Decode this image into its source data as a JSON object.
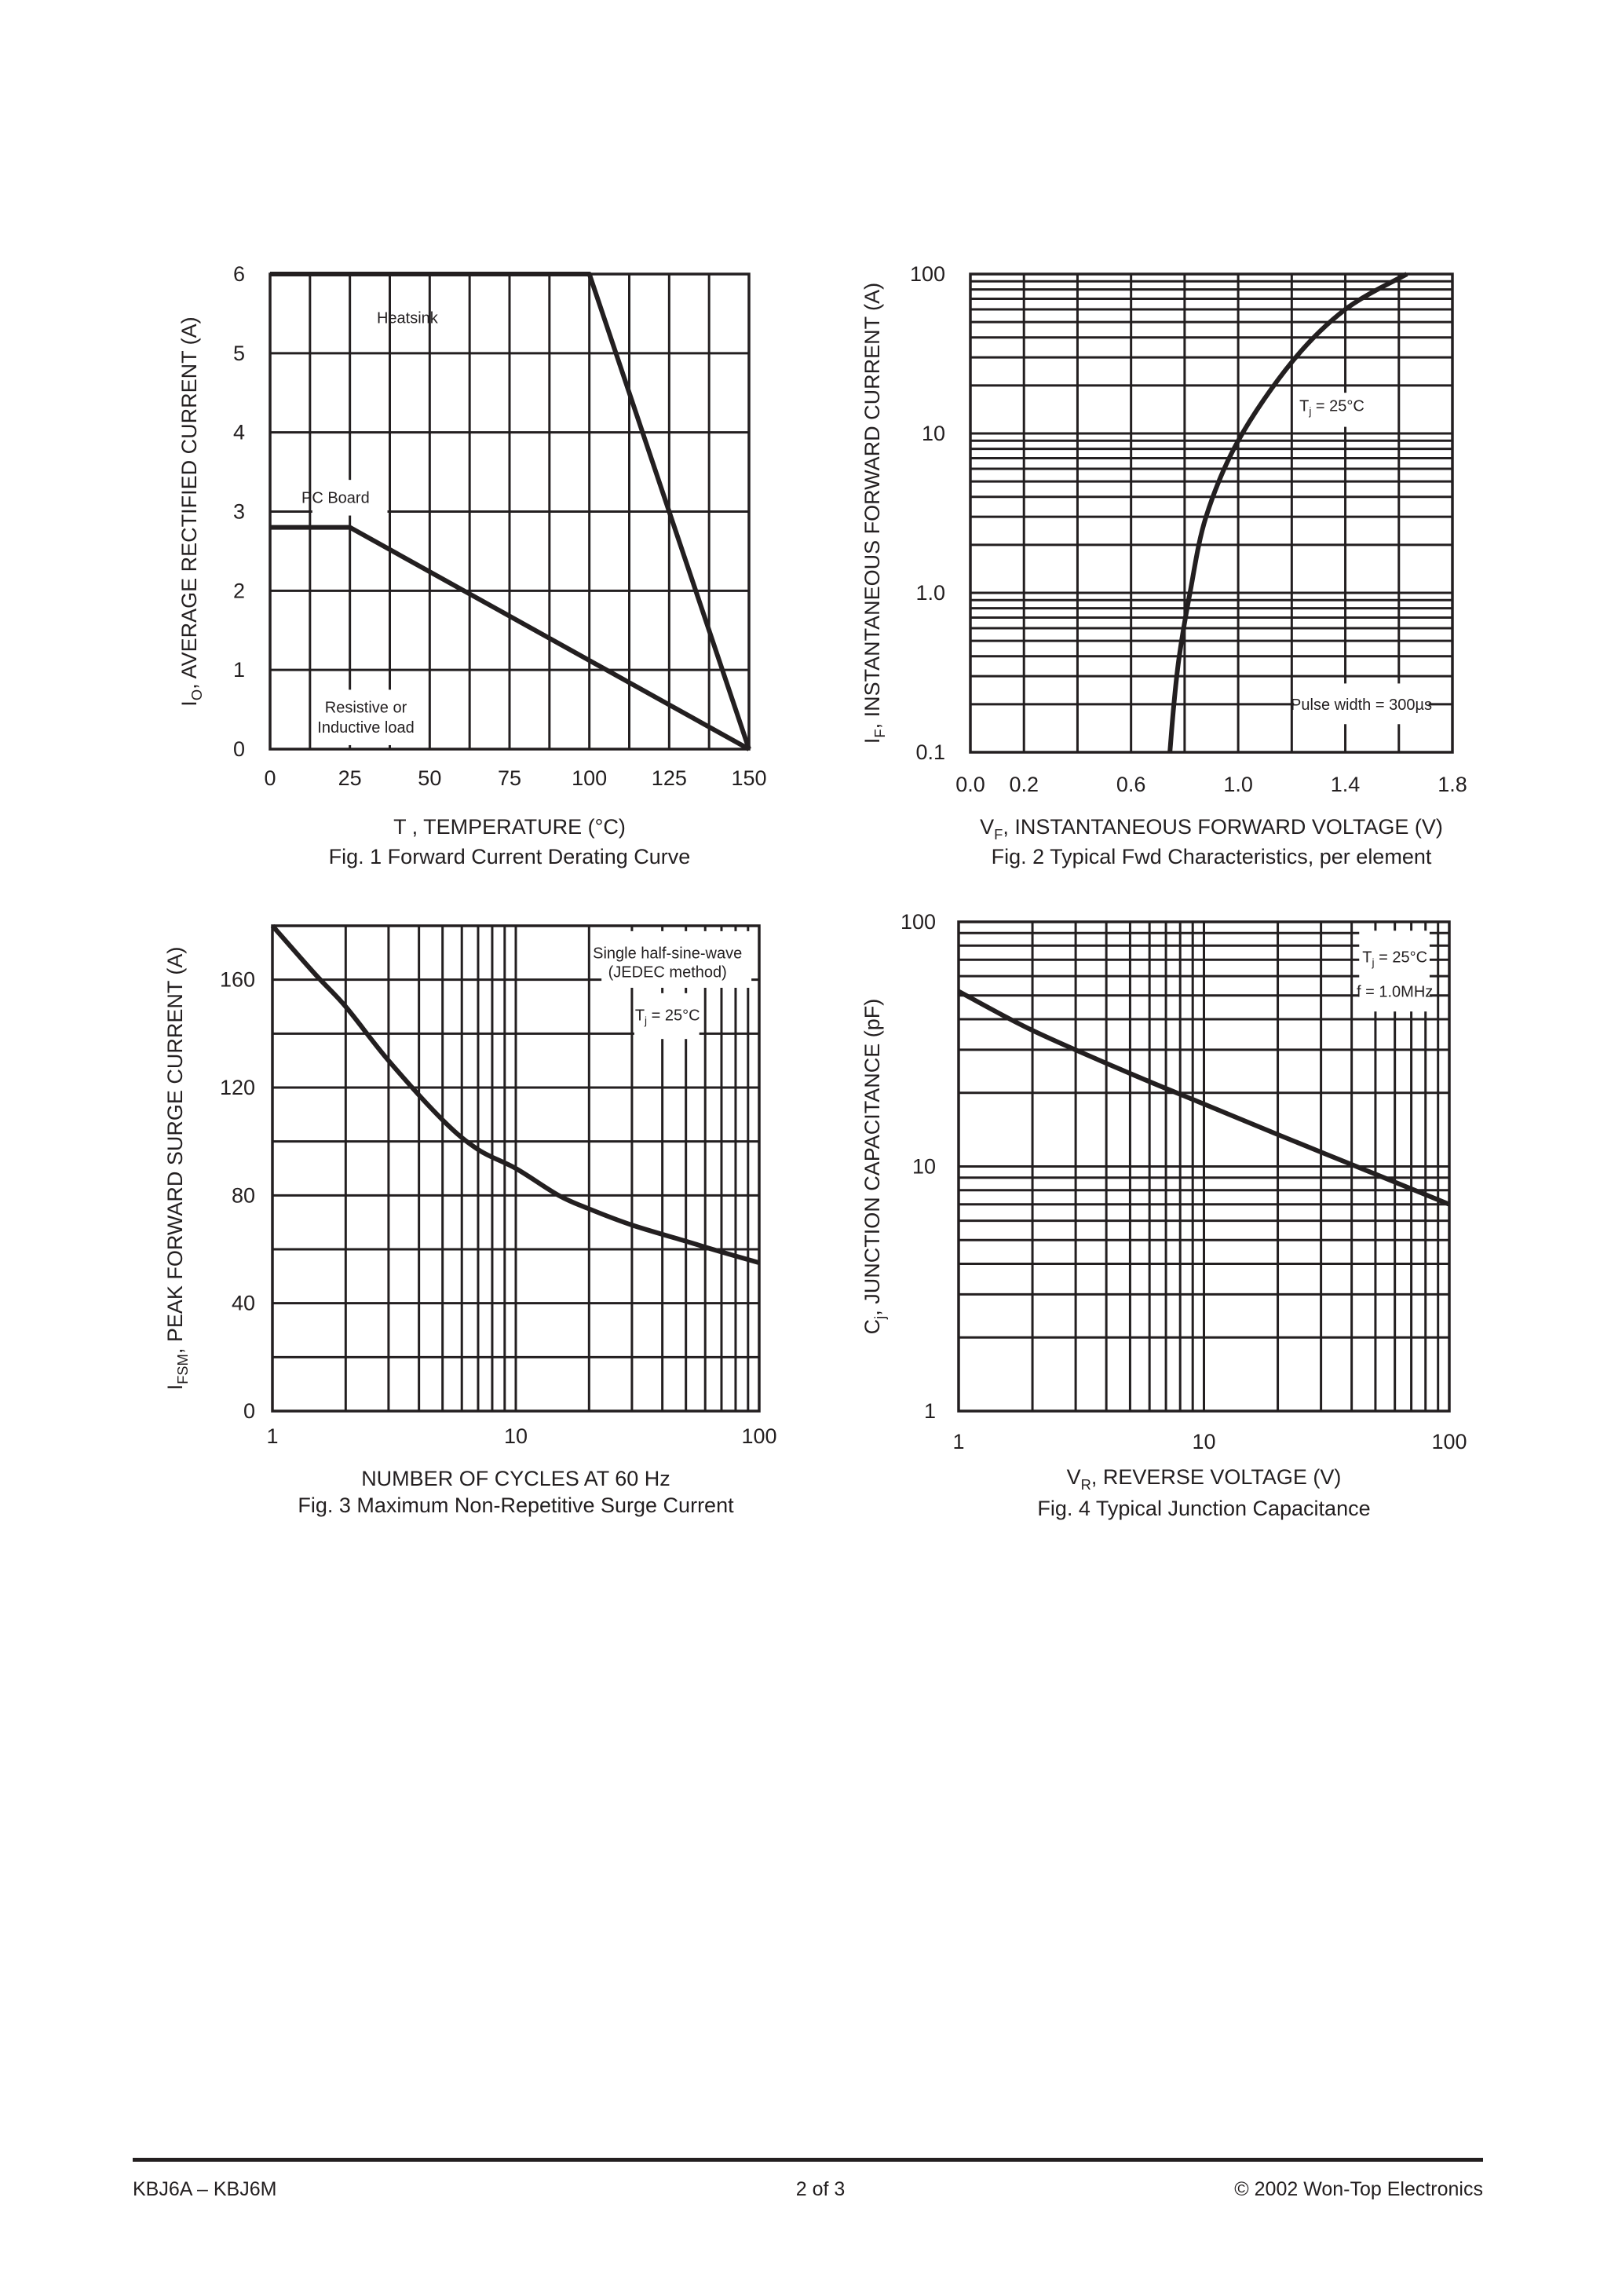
{
  "colors": {
    "ink": "#231f20",
    "background": "#ffffff"
  },
  "chart_data": [
    {
      "type": "line",
      "caption": "Fig. 1  Forward Current Derating Curve",
      "xlabel": "T  , TEMPERATURE (°C)",
      "ylabel": {
        "main": "I",
        "sub": "O",
        "rest": ", AVERAGE RECTIFIED CURRENT (A)"
      },
      "xlim": [
        0,
        150
      ],
      "ylim": [
        0,
        6
      ],
      "x_scale": "linear",
      "y_scale": "linear",
      "grid": true,
      "xticks": [
        0,
        25,
        50,
        75,
        100,
        125,
        150
      ],
      "xtick_labels": [
        "0",
        "25",
        "50",
        "75",
        "100",
        "125",
        "150"
      ],
      "yticks": [
        0,
        1,
        2,
        3,
        4,
        5,
        6
      ],
      "ytick_labels": [
        "0",
        "1",
        "2",
        "3",
        "4",
        "5",
        "6"
      ],
      "series": [
        {
          "name": "Heatsink",
          "x": [
            0,
            100,
            150
          ],
          "y": [
            6,
            6,
            0
          ]
        },
        {
          "name": "PC Board",
          "x": [
            0,
            25,
            150
          ],
          "y": [
            2.8,
            2.8,
            0
          ]
        }
      ],
      "annotations": [
        "Heatsink",
        "PC Board",
        "Resistive or",
        "Inductive load"
      ]
    },
    {
      "type": "line",
      "caption": "Fig. 2  Typical Fwd Characteristics, per element",
      "xlabel": {
        "main": "V",
        "sub": "F",
        "rest": ", INSTANTANEOUS FORWARD VOLTAGE (V)"
      },
      "ylabel": {
        "main": "I",
        "sub": "F",
        "rest": ", INSTANTANEOUS FORWARD CURRENT (A)"
      },
      "xlim": [
        0,
        1.8
      ],
      "ylim": [
        0.1,
        100
      ],
      "x_scale": "linear",
      "y_scale": "log",
      "grid": true,
      "xticks": [
        0,
        0.2,
        0.6,
        1.0,
        1.4,
        1.8
      ],
      "xtick_labels": [
        "0.0",
        "0.2",
        "0.6",
        "1.0",
        "1.4",
        "1.8"
      ],
      "yticks": [
        0.1,
        1,
        10,
        100
      ],
      "ytick_labels": [
        "0.1",
        "1.0",
        "10",
        "100"
      ],
      "series": [
        {
          "x": [
            0.745,
            0.76,
            0.78,
            0.82,
            0.88,
            1.0,
            1.2,
            1.4,
            1.63
          ],
          "y": [
            0.1,
            0.2,
            0.4,
            1.0,
            3,
            9,
            28,
            60,
            100
          ]
        }
      ],
      "annotations": [
        {
          "main": "T",
          "sub": "j",
          "rest": " = 25°C"
        },
        "Pulse width = 300µs"
      ]
    },
    {
      "type": "line",
      "caption": "Fig. 3  Maximum Non-Repetitive Surge Current",
      "xlabel": "NUMBER OF CYCLES AT 60 Hz",
      "ylabel": {
        "main": "I",
        "sub": "FSM",
        "rest": ", PEAK FORWARD SURGE CURRENT (A)"
      },
      "xlim": [
        1,
        100
      ],
      "ylim": [
        0,
        180
      ],
      "x_scale": "log",
      "y_scale": "linear",
      "grid": true,
      "xticks": [
        1,
        10,
        100
      ],
      "xtick_labels": [
        "1",
        "10",
        "100"
      ],
      "yticks": [
        0,
        40,
        80,
        120,
        160
      ],
      "ytick_labels": [
        "0",
        "40",
        "80",
        "120",
        "160"
      ],
      "series": [
        {
          "x": [
            1,
            1.5,
            2,
            3,
            5,
            7,
            10,
            15,
            20,
            30,
            50,
            70,
            100
          ],
          "y": [
            180,
            162,
            150,
            130,
            108,
            97,
            90,
            80,
            75,
            69,
            63,
            59,
            55
          ]
        }
      ],
      "annotations": [
        "Single half-sine-wave",
        "(JEDEC method)",
        {
          "main": "T",
          "sub": "j",
          "rest": " = 25°C"
        }
      ]
    },
    {
      "type": "line",
      "caption": "Fig. 4  Typical Junction Capacitance",
      "xlabel": {
        "main": "V",
        "sub": "R",
        "rest": ", REVERSE VOLTAGE (V)"
      },
      "ylabel": {
        "main": "C",
        "sub": "j",
        "rest": ", JUNCTION CAPACITANCE (pF)"
      },
      "xlim": [
        1,
        100
      ],
      "ylim": [
        1,
        100
      ],
      "x_scale": "log",
      "y_scale": "log",
      "grid": true,
      "xticks": [
        1,
        10,
        100
      ],
      "xtick_labels": [
        "1",
        "10",
        "100"
      ],
      "yticks": [
        1,
        10,
        100
      ],
      "ytick_labels": [
        "1",
        "10",
        "100"
      ],
      "series": [
        {
          "x": [
            1,
            2,
            5,
            10,
            20,
            50,
            100
          ],
          "y": [
            52,
            36,
            24,
            18,
            13.5,
            9.3,
            7
          ]
        }
      ],
      "annotations": [
        {
          "main": "T",
          "sub": "j",
          "rest": " = 25°C"
        },
        "f = 1.0MHz"
      ]
    }
  ],
  "footer": {
    "left": "KBJ6A – KBJ6M",
    "center": "2 of 3",
    "right": "© 2002  Won-Top  Electronics"
  }
}
